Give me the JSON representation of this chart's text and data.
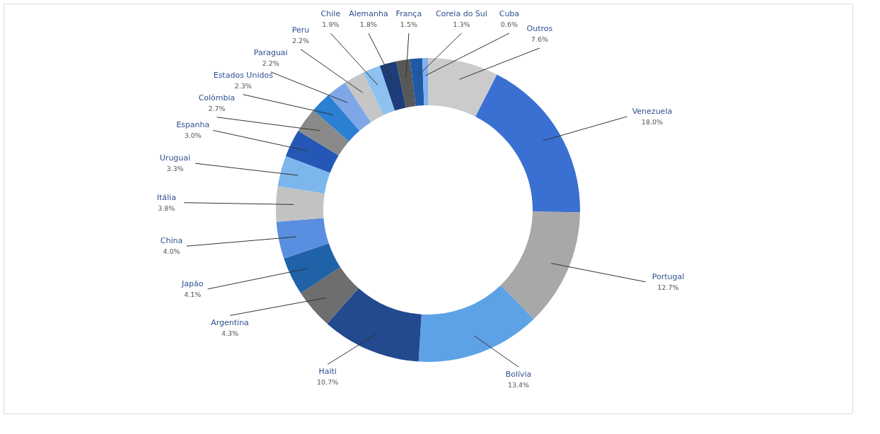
{
  "chart_data": {
    "type": "donut",
    "categories": [
      "Outros",
      "Venezuela",
      "Portugal",
      "Bolívia",
      "Haiti",
      "Argentina",
      "Japão",
      "China",
      "Itália",
      "Uruguai",
      "Espanha",
      "Colômbia",
      "Estados Unidos",
      "Paraguai",
      "Peru",
      "Chile",
      "Alemanha",
      "França",
      "Coreia do Sul",
      "Cuba"
    ],
    "values": [
      7.6,
      18.0,
      12.7,
      13.4,
      10.7,
      4.3,
      4.1,
      4.0,
      3.8,
      3.3,
      3.0,
      2.7,
      2.3,
      2.2,
      2.2,
      1.9,
      1.8,
      1.5,
      1.3,
      0.6
    ],
    "value_labels": [
      "7.6%",
      "18.0%",
      "12.7%",
      "13.4%",
      "10.7%",
      "4.3%",
      "4.1%",
      "4.0%",
      "3.8%",
      "3.3%",
      "3.0%",
      "2.7%",
      "2.3%",
      "2.2%",
      "2.2%",
      "1.9%",
      "1.8%",
      "1.5%",
      "1.3%",
      "0.6%"
    ],
    "colors": [
      "#cbcbcb",
      "#3a70d2",
      "#a8a8a8",
      "#5ea2e6",
      "#23498f",
      "#6e6e6e",
      "#2062a8",
      "#5a8ee0",
      "#c2c2c2",
      "#7cb6ec",
      "#2457b6",
      "#8a8a8a",
      "#2a80d2",
      "#7fa6e6",
      "#c6c6c6",
      "#8dc2f0",
      "#1d3c78",
      "#585858",
      "#1f5aa6",
      "#80b2ee"
    ]
  }
}
